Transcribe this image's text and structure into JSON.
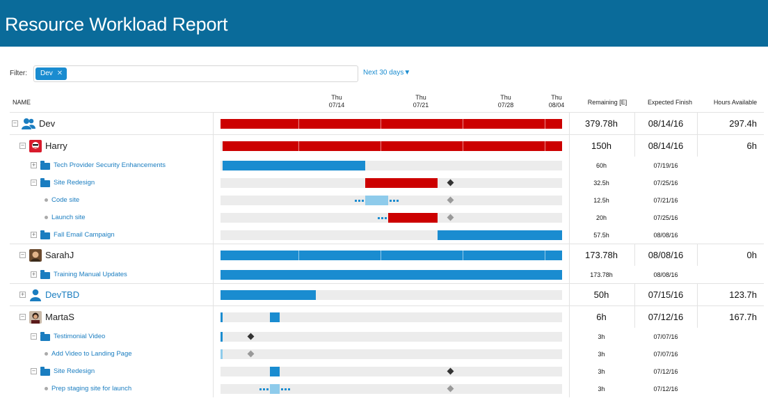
{
  "header": {
    "title": "Resource Workload Report"
  },
  "filter": {
    "label": "Filter:",
    "chip": "Dev",
    "chip_remove": "✕",
    "range": "Next 30 days▼"
  },
  "columns": {
    "name": "NAME",
    "dates": [
      {
        "day": "Thu",
        "date": "07/14"
      },
      {
        "day": "Thu",
        "date": "07/21"
      },
      {
        "day": "Thu",
        "date": "07/28"
      },
      {
        "day": "Thu",
        "date": "08/04"
      }
    ],
    "remaining": "Remaining [E]",
    "finish": "Expected Finish",
    "hours": "Hours Available"
  },
  "rows": [
    {
      "name": "Dev",
      "remaining": "379.78h",
      "finish": "08/14/16",
      "hours": "297.4h"
    },
    {
      "name": "Harry",
      "remaining": "150h",
      "finish": "08/14/16",
      "hours": "6h"
    },
    {
      "name": "Tech Provider Security Enhancements",
      "remaining": "60h",
      "finish": "07/19/16"
    },
    {
      "name": "Site Redesign",
      "remaining": "32.5h",
      "finish": "07/25/16"
    },
    {
      "name": "Code site",
      "remaining": "12.5h",
      "finish": "07/21/16"
    },
    {
      "name": "Launch site",
      "remaining": "20h",
      "finish": "07/25/16"
    },
    {
      "name": "Fall Email Campaign",
      "remaining": "57.5h",
      "finish": "08/08/16"
    },
    {
      "name": "SarahJ",
      "remaining": "173.78h",
      "finish": "08/08/16",
      "hours": "0h"
    },
    {
      "name": "Training Manual Updates",
      "remaining": "173.78h",
      "finish": "08/08/16"
    },
    {
      "name": "DevTBD",
      "remaining": "50h",
      "finish": "07/15/16",
      "hours": "123.7h"
    },
    {
      "name": "MartaS",
      "remaining": "6h",
      "finish": "07/12/16",
      "hours": "167.7h"
    },
    {
      "name": "Testimonial Video",
      "remaining": "3h",
      "finish": "07/07/16"
    },
    {
      "name": "Add Video to Landing Page",
      "remaining": "3h",
      "finish": "07/07/16"
    },
    {
      "name": "Site Redesign",
      "remaining": "3h",
      "finish": "07/12/16"
    },
    {
      "name": "Prep staging site for launch",
      "remaining": "3h",
      "finish": "07/12/16"
    }
  ],
  "icons": {
    "collapse": "−",
    "expand": "+",
    "team": "people-icon",
    "folder": "folder-icon",
    "task": "bullet-icon",
    "milestone": "diamond-icon",
    "person": "person-icon"
  },
  "colors": {
    "header": "#0a6b9a",
    "overloaded": "#cc0000",
    "scheduled": "#1a8cd0",
    "light": "#8ecbeb",
    "link": "#1a7dc0"
  }
}
